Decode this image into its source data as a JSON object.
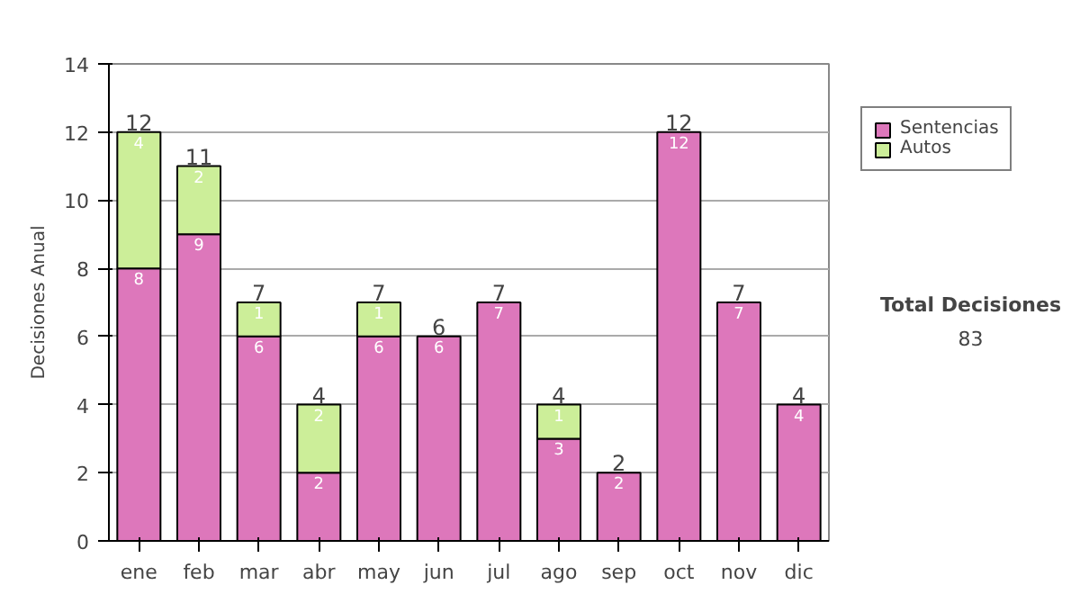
{
  "chart_data": {
    "type": "bar",
    "stacked": true,
    "ylabel": "Decisiones Anual",
    "categories": [
      "ene",
      "feb",
      "mar",
      "abr",
      "may",
      "jun",
      "jul",
      "ago",
      "sep",
      "oct",
      "nov",
      "dic"
    ],
    "series": [
      {
        "name": "Sentencias",
        "color": "#dd77bb",
        "values": [
          8,
          9,
          6,
          2,
          6,
          6,
          7,
          3,
          2,
          12,
          7,
          4
        ],
        "value_labels": [
          "8",
          "9",
          "6",
          "2",
          "6",
          "6",
          "7",
          "3",
          "2",
          "12",
          "7",
          "4"
        ]
      },
      {
        "name": "Autos",
        "color": "#ccee99",
        "values": [
          4,
          2,
          1,
          2,
          1,
          0,
          0,
          1,
          0,
          0,
          0,
          0
        ],
        "value_labels": [
          "4",
          "2",
          "1",
          "2",
          "1",
          null,
          null,
          "1",
          null,
          null,
          null,
          null
        ]
      }
    ],
    "totals": [
      "12",
      "11",
      "7",
      "4",
      "7",
      "6",
      "7",
      "4",
      "2",
      "12",
      "7",
      "4"
    ],
    "ylim": [
      0,
      14
    ],
    "yticks": [
      0,
      2,
      4,
      6,
      8,
      10,
      12,
      14
    ],
    "grid": "y",
    "legend": "top right",
    "annotations": [
      "Total Decisiones",
      "83"
    ]
  }
}
